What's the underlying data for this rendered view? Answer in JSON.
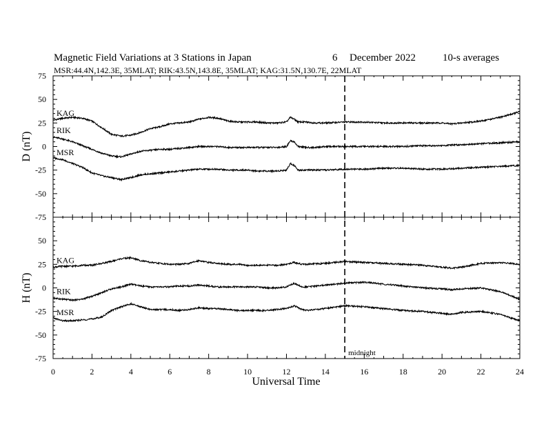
{
  "chart_data": {
    "type": "line",
    "title": "Magnetic Field Variations at 3 Stations in Japan",
    "date_day": "6",
    "date_month": "December",
    "date_year": "2022",
    "averaging": "10-s averages",
    "subtitle": "MSR:44.4N,142.3E, 35MLAT;  RIK:43.5N,143.8E, 35MLAT;  KAG:31.5N,130.7E, 22MLAT",
    "xlabel": "Universal Time",
    "xlim": [
      0,
      24
    ],
    "xticks": [
      "0",
      "2",
      "4",
      "6",
      "8",
      "10",
      "12",
      "14",
      "16",
      "18",
      "20",
      "22",
      "24"
    ],
    "marker": {
      "x": 15,
      "label": "midnight"
    },
    "panels": [
      {
        "ylabel": "D (nT)",
        "ylim": [
          -75,
          75
        ],
        "yticks": [
          "75",
          "50",
          "25",
          "0",
          "-25",
          "-50",
          "-75"
        ],
        "series": [
          {
            "name": "KAG",
            "x": [
              0,
              0.5,
              1,
              1.5,
              2,
              2.5,
              3,
              3.5,
              4,
              4.5,
              5,
              5.5,
              6,
              6.5,
              7,
              7.5,
              8,
              8.5,
              9,
              9.5,
              10,
              10.5,
              11,
              11.5,
              12,
              12.2,
              12.4,
              12.6,
              13,
              13.5,
              14,
              15,
              16,
              17,
              18,
              19,
              20,
              20.5,
              21,
              22,
              23,
              24
            ],
            "values": [
              28,
              30,
              31,
              30,
              27,
              20,
              13,
              11,
              12,
              15,
              19,
              21,
              24,
              25,
              26,
              29,
              31,
              30,
              27,
              26,
              26,
              26,
              25,
              25,
              26,
              31,
              29,
              26,
              26,
              25,
              25,
              26,
              26,
              25,
              25,
              25,
              25,
              24,
              25,
              27,
              31,
              37
            ]
          },
          {
            "name": "RIK",
            "x": [
              0,
              0.5,
              1,
              1.5,
              2,
              2.5,
              3,
              3.5,
              4,
              4.5,
              5,
              5.5,
              6,
              6.5,
              7,
              7.5,
              8,
              8.5,
              9,
              9.5,
              10,
              10.5,
              11,
              11.5,
              12,
              12.2,
              12.4,
              12.6,
              13,
              13.5,
              14,
              15,
              16,
              17,
              18,
              19,
              20,
              21,
              22,
              23,
              24
            ],
            "values": [
              10,
              8,
              5,
              1,
              -3,
              -7,
              -10,
              -11,
              -8,
              -5,
              -4,
              -3,
              -3,
              -2,
              -1,
              0,
              0,
              0,
              -1,
              -1,
              -1,
              -1,
              -1,
              -1,
              0,
              6,
              5,
              0,
              -1,
              -1,
              0,
              0,
              0,
              0,
              0,
              1,
              1,
              2,
              3,
              4,
              5
            ]
          },
          {
            "name": "MSR",
            "x": [
              0,
              0.5,
              1,
              1.5,
              2,
              2.5,
              3,
              3.5,
              4,
              4.5,
              5,
              5.5,
              6,
              6.5,
              7,
              7.5,
              8,
              8.5,
              9,
              9.5,
              10,
              10.5,
              11,
              11.5,
              12,
              12.2,
              12.4,
              12.6,
              13,
              13.5,
              14,
              15,
              16,
              17,
              18,
              19,
              20,
              21,
              22,
              23,
              24
            ],
            "values": [
              -12,
              -14,
              -18,
              -22,
              -28,
              -31,
              -33,
              -35,
              -33,
              -30,
              -29,
              -28,
              -27,
              -26,
              -25,
              -24,
              -24,
              -24,
              -25,
              -25,
              -25,
              -26,
              -26,
              -26,
              -25,
              -18,
              -20,
              -25,
              -25,
              -25,
              -25,
              -24,
              -24,
              -23,
              -23,
              -24,
              -24,
              -23,
              -22,
              -21,
              -20
            ]
          }
        ]
      },
      {
        "ylabel": "H (nT)",
        "ylim": [
          -75,
          75
        ],
        "yticks": [
          "75",
          "50",
          "25",
          "0",
          "-25",
          "-50",
          "-75"
        ],
        "series": [
          {
            "name": "KAG",
            "x": [
              0,
              0.5,
              1,
              1.5,
              2,
              2.5,
              3,
              3.5,
              4,
              4.5,
              5,
              5.5,
              6,
              6.5,
              7,
              7.5,
              8,
              8.5,
              9,
              9.5,
              10,
              10.5,
              11,
              11.5,
              12,
              12.4,
              12.8,
              13,
              14,
              15,
              16,
              17,
              18,
              19,
              20,
              20.5,
              21,
              22,
              23,
              24
            ],
            "values": [
              22,
              23,
              23,
              24,
              24,
              26,
              28,
              31,
              32,
              29,
              27,
              26,
              25,
              25,
              26,
              29,
              27,
              26,
              25,
              25,
              24,
              24,
              24,
              24,
              25,
              27,
              25,
              25,
              26,
              28,
              27,
              26,
              25,
              24,
              22,
              21,
              22,
              26,
              27,
              25
            ]
          },
          {
            "name": "RIK",
            "x": [
              0,
              0.5,
              1,
              1.5,
              2,
              2.5,
              3,
              3.5,
              4,
              4.5,
              5,
              5.5,
              6,
              6.5,
              7,
              7.5,
              8,
              8.5,
              9,
              9.5,
              10,
              10.5,
              11,
              11.5,
              12,
              12.4,
              12.8,
              13,
              14,
              15,
              16,
              17,
              18,
              19,
              20,
              20.5,
              21,
              22,
              23,
              24
            ],
            "values": [
              -11,
              -12,
              -13,
              -12,
              -9,
              -5,
              -1,
              1,
              4,
              2,
              1,
              1,
              1,
              2,
              2,
              3,
              2,
              1,
              1,
              1,
              1,
              1,
              0,
              0,
              1,
              5,
              1,
              1,
              3,
              5,
              6,
              4,
              2,
              0,
              -1,
              -2,
              -1,
              0,
              -4,
              -12
            ]
          },
          {
            "name": "MSR",
            "x": [
              0,
              0.5,
              1,
              1.5,
              2,
              2.5,
              3,
              3.5,
              4,
              4.5,
              5,
              5.5,
              6,
              6.5,
              7,
              7.5,
              8,
              8.5,
              9,
              9.5,
              10,
              10.5,
              11,
              11.5,
              12,
              12.4,
              12.8,
              13,
              14,
              15,
              16,
              17,
              18,
              19,
              20,
              20.5,
              21,
              22,
              23,
              24
            ],
            "values": [
              -32,
              -35,
              -35,
              -34,
              -33,
              -31,
              -24,
              -20,
              -17,
              -20,
              -23,
              -23,
              -23,
              -24,
              -23,
              -21,
              -22,
              -22,
              -23,
              -24,
              -24,
              -24,
              -24,
              -23,
              -22,
              -19,
              -23,
              -24,
              -22,
              -19,
              -20,
              -22,
              -24,
              -25,
              -27,
              -28,
              -26,
              -25,
              -28,
              -35
            ]
          }
        ]
      }
    ],
    "grid": false,
    "legend": "none"
  }
}
